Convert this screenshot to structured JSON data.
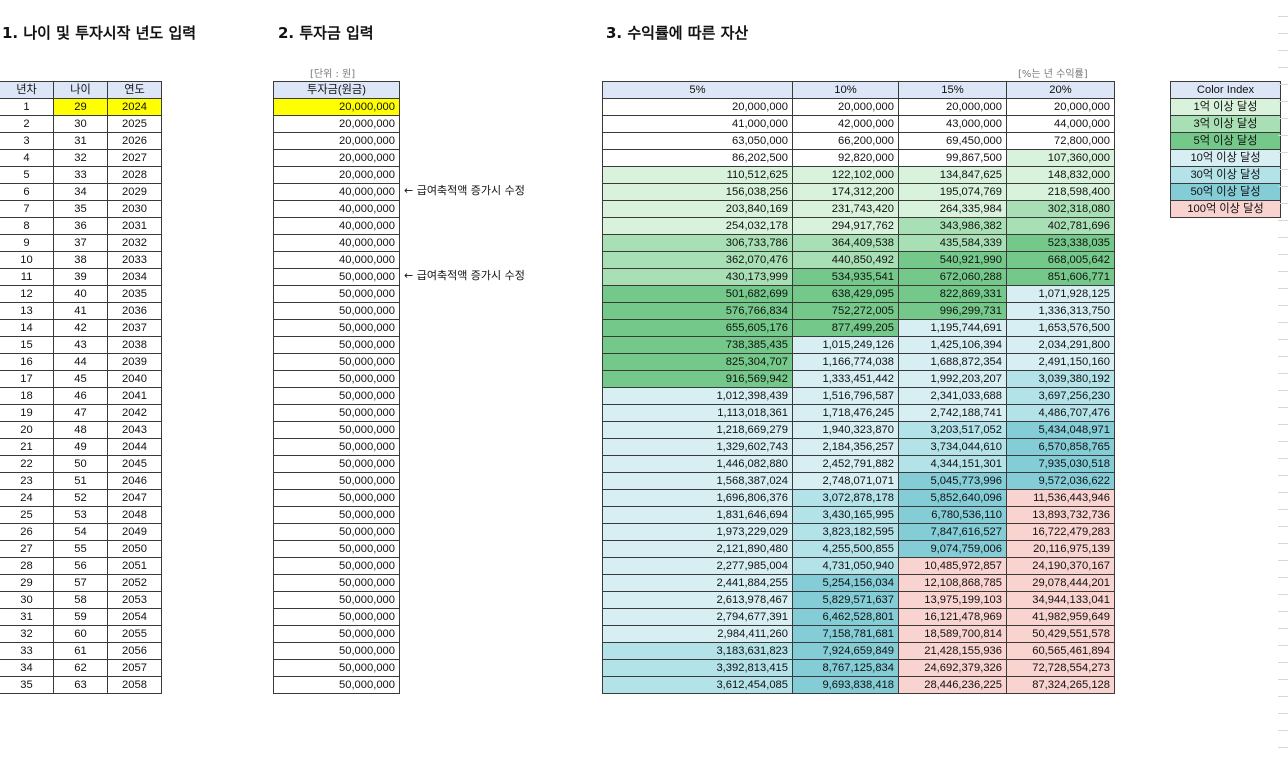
{
  "headers": {
    "s1": "1. 나이 및 투자시작 년도 입력",
    "s2": "2. 투자금 입력",
    "s3": "3. 수익률에 따른 자산"
  },
  "hints": {
    "unit": "[단위 : 원]",
    "rate": "[%는 년 수익률]"
  },
  "colors": {
    "header_fill": "#dce6f7",
    "input_highlight": "#ffff00",
    "tiers": [
      "#ffffff",
      "#d9f2dc",
      "#a9dfb4",
      "#74c98a",
      "#d7eff2",
      "#b3e2e8",
      "#84ccd6",
      "#f9d3d0"
    ]
  },
  "table1": {
    "columns": [
      "년차",
      "나이",
      "연도"
    ],
    "rows": [
      [
        "1",
        "29",
        "2024"
      ],
      [
        "2",
        "30",
        "2025"
      ],
      [
        "3",
        "31",
        "2026"
      ],
      [
        "4",
        "32",
        "2027"
      ],
      [
        "5",
        "33",
        "2028"
      ],
      [
        "6",
        "34",
        "2029"
      ],
      [
        "7",
        "35",
        "2030"
      ],
      [
        "8",
        "36",
        "2031"
      ],
      [
        "9",
        "37",
        "2032"
      ],
      [
        "10",
        "38",
        "2033"
      ],
      [
        "11",
        "39",
        "2034"
      ],
      [
        "12",
        "40",
        "2035"
      ],
      [
        "13",
        "41",
        "2036"
      ],
      [
        "14",
        "42",
        "2037"
      ],
      [
        "15",
        "43",
        "2038"
      ],
      [
        "16",
        "44",
        "2039"
      ],
      [
        "17",
        "45",
        "2040"
      ],
      [
        "18",
        "46",
        "2041"
      ],
      [
        "19",
        "47",
        "2042"
      ],
      [
        "20",
        "48",
        "2043"
      ],
      [
        "21",
        "49",
        "2044"
      ],
      [
        "22",
        "50",
        "2045"
      ],
      [
        "23",
        "51",
        "2046"
      ],
      [
        "24",
        "52",
        "2047"
      ],
      [
        "25",
        "53",
        "2048"
      ],
      [
        "26",
        "54",
        "2049"
      ],
      [
        "27",
        "55",
        "2050"
      ],
      [
        "28",
        "56",
        "2051"
      ],
      [
        "29",
        "57",
        "2052"
      ],
      [
        "30",
        "58",
        "2053"
      ],
      [
        "31",
        "59",
        "2054"
      ],
      [
        "32",
        "60",
        "2055"
      ],
      [
        "33",
        "61",
        "2056"
      ],
      [
        "34",
        "62",
        "2057"
      ],
      [
        "35",
        "63",
        "2058"
      ]
    ]
  },
  "table2": {
    "column": "투자금(원금)",
    "rows": [
      "20,000,000",
      "20,000,000",
      "20,000,000",
      "20,000,000",
      "20,000,000",
      "40,000,000",
      "40,000,000",
      "40,000,000",
      "40,000,000",
      "40,000,000",
      "50,000,000",
      "50,000,000",
      "50,000,000",
      "50,000,000",
      "50,000,000",
      "50,000,000",
      "50,000,000",
      "50,000,000",
      "50,000,000",
      "50,000,000",
      "50,000,000",
      "50,000,000",
      "50,000,000",
      "50,000,000",
      "50,000,000",
      "50,000,000",
      "50,000,000",
      "50,000,000",
      "50,000,000",
      "50,000,000",
      "50,000,000",
      "50,000,000",
      "50,000,000",
      "50,000,000",
      "50,000,000"
    ],
    "notes": [
      {
        "row": 6,
        "text": "← 급여축적액 증가시 수정"
      },
      {
        "row": 11,
        "text": "← 급여축적액 증가시 수정"
      }
    ]
  },
  "table3": {
    "columns": [
      "5%",
      "10%",
      "15%",
      "20%"
    ],
    "rows": [
      [
        "20,000,000",
        "20,000,000",
        "20,000,000",
        "20,000,000"
      ],
      [
        "41,000,000",
        "42,000,000",
        "43,000,000",
        "44,000,000"
      ],
      [
        "63,050,000",
        "66,200,000",
        "69,450,000",
        "72,800,000"
      ],
      [
        "86,202,500",
        "92,820,000",
        "99,867,500",
        "107,360,000"
      ],
      [
        "110,512,625",
        "122,102,000",
        "134,847,625",
        "148,832,000"
      ],
      [
        "156,038,256",
        "174,312,200",
        "195,074,769",
        "218,598,400"
      ],
      [
        "203,840,169",
        "231,743,420",
        "264,335,984",
        "302,318,080"
      ],
      [
        "254,032,178",
        "294,917,762",
        "343,986,382",
        "402,781,696"
      ],
      [
        "306,733,786",
        "364,409,538",
        "435,584,339",
        "523,338,035"
      ],
      [
        "362,070,476",
        "440,850,492",
        "540,921,990",
        "668,005,642"
      ],
      [
        "430,173,999",
        "534,935,541",
        "672,060,288",
        "851,606,771"
      ],
      [
        "501,682,699",
        "638,429,095",
        "822,869,331",
        "1,071,928,125"
      ],
      [
        "576,766,834",
        "752,272,005",
        "996,299,731",
        "1,336,313,750"
      ],
      [
        "655,605,176",
        "877,499,205",
        "1,195,744,691",
        "1,653,576,500"
      ],
      [
        "738,385,435",
        "1,015,249,126",
        "1,425,106,394",
        "2,034,291,800"
      ],
      [
        "825,304,707",
        "1,166,774,038",
        "1,688,872,354",
        "2,491,150,160"
      ],
      [
        "916,569,942",
        "1,333,451,442",
        "1,992,203,207",
        "3,039,380,192"
      ],
      [
        "1,012,398,439",
        "1,516,796,587",
        "2,341,033,688",
        "3,697,256,230"
      ],
      [
        "1,113,018,361",
        "1,718,476,245",
        "2,742,188,741",
        "4,486,707,476"
      ],
      [
        "1,218,669,279",
        "1,940,323,870",
        "3,203,517,052",
        "5,434,048,971"
      ],
      [
        "1,329,602,743",
        "2,184,356,257",
        "3,734,044,610",
        "6,570,858,765"
      ],
      [
        "1,446,082,880",
        "2,452,791,882",
        "4,344,151,301",
        "7,935,030,518"
      ],
      [
        "1,568,387,024",
        "2,748,071,071",
        "5,045,773,996",
        "9,572,036,622"
      ],
      [
        "1,696,806,376",
        "3,072,878,178",
        "5,852,640,096",
        "11,536,443,946"
      ],
      [
        "1,831,646,694",
        "3,430,165,995",
        "6,780,536,110",
        "13,893,732,736"
      ],
      [
        "1,973,229,029",
        "3,823,182,595",
        "7,847,616,527",
        "16,722,479,283"
      ],
      [
        "2,121,890,480",
        "4,255,500,855",
        "9,074,759,006",
        "20,116,975,139"
      ],
      [
        "2,277,985,004",
        "4,731,050,940",
        "10,485,972,857",
        "24,190,370,167"
      ],
      [
        "2,441,884,255",
        "5,254,156,034",
        "12,108,868,785",
        "29,078,444,201"
      ],
      [
        "2,613,978,467",
        "5,829,571,637",
        "13,975,199,103",
        "34,944,133,041"
      ],
      [
        "2,794,677,391",
        "6,462,528,801",
        "16,121,478,969",
        "41,982,959,649"
      ],
      [
        "2,984,411,260",
        "7,158,781,681",
        "18,589,700,814",
        "50,429,551,578"
      ],
      [
        "3,183,631,823",
        "7,924,659,849",
        "21,428,155,936",
        "60,565,461,894"
      ],
      [
        "3,392,813,415",
        "8,767,125,834",
        "24,692,379,326",
        "72,728,554,273"
      ],
      [
        "3,612,454,085",
        "9,693,838,418",
        "28,446,236,225",
        "87,324,265,128"
      ]
    ]
  },
  "legend": {
    "title": "Color Index",
    "items": [
      {
        "label": "1억 이상 달성",
        "tier": 1
      },
      {
        "label": "3억 이상 달성",
        "tier": 2
      },
      {
        "label": "5억 이상 달성",
        "tier": 3
      },
      {
        "label": "10억 이상 달성",
        "tier": 4
      },
      {
        "label": "30억 이상 달성",
        "tier": 5
      },
      {
        "label": "50억 이상 달성",
        "tier": 6
      },
      {
        "label": "100억 이상 달성",
        "tier": 7
      }
    ]
  }
}
